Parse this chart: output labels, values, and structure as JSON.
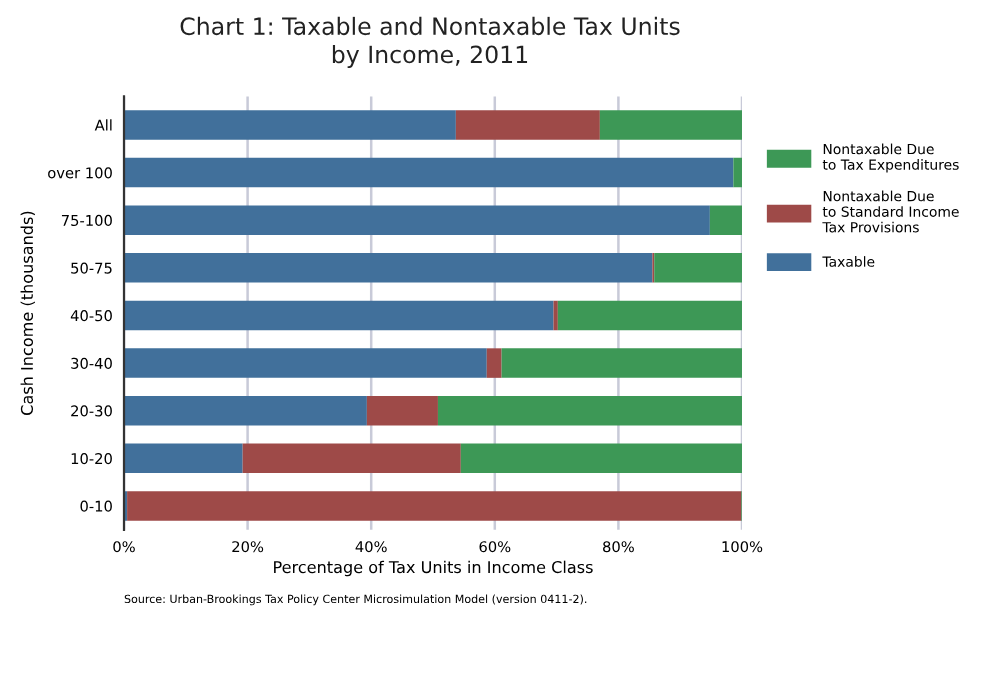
{
  "chart_data": {
    "type": "bar",
    "orientation": "horizontal",
    "stacked": true,
    "title": "Chart 1: Taxable and Nontaxable Tax Units\nby Income, 2011",
    "xlabel": "Percentage of Tax Units in Income Class",
    "ylabel": "Cash Income (thousands)",
    "categories": [
      "All",
      "over 100",
      "75-100",
      "50-75",
      "40-50",
      "30-40",
      "20-30",
      "10-20",
      "0-10"
    ],
    "series": [
      {
        "name": "Taxable",
        "color": "#41709b",
        "values": [
          53.7,
          98.6,
          94.8,
          85.5,
          69.5,
          58.7,
          39.3,
          19.2,
          0.5
        ]
      },
      {
        "name": "Nontaxable Due\nto Standard Income\nTax Provisions",
        "color": "#9e4a48",
        "values": [
          23.3,
          0,
          0,
          0.3,
          0.7,
          2.4,
          11.5,
          35.3,
          99.4
        ]
      },
      {
        "name": "Nontaxable Due\nto Tax Expenditures",
        "color": "#3d9856",
        "values": [
          23,
          1.4,
          5.2,
          14.2,
          29.8,
          38.9,
          49.2,
          45.5,
          0.1
        ]
      }
    ],
    "xlim": [
      0,
      100
    ],
    "xticks": [
      {
        "value": 0,
        "label": "0%"
      },
      {
        "value": 20,
        "label": "20%"
      },
      {
        "value": 40,
        "label": "40%"
      },
      {
        "value": 60,
        "label": "60%"
      },
      {
        "value": 80,
        "label": "80%"
      },
      {
        "value": 100,
        "label": "100%"
      }
    ],
    "grid": "x",
    "legend": "right",
    "annotations": [
      "Source: Urban-Brookings Tax Policy Center Microsimulation Model (version 0411-2)."
    ]
  }
}
